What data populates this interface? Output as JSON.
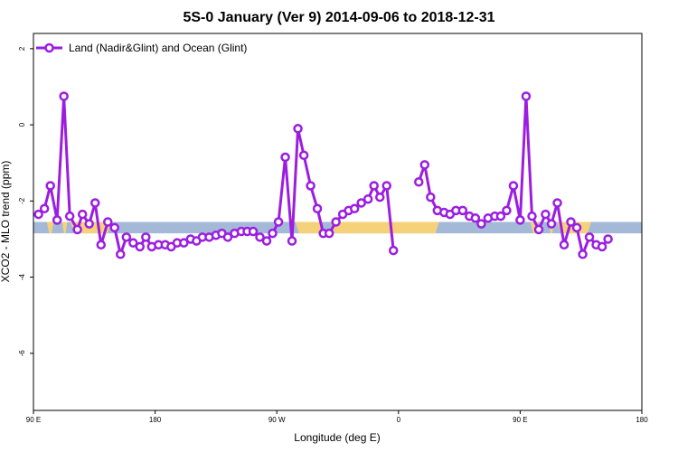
{
  "chart_data": {
    "type": "line",
    "title": "5S-0 January (Ver 9)   2014-09-06 to 2018-12-31",
    "xlabel": "Longitude (deg E)",
    "ylabel": "XCO2 - MLO trend (ppm)",
    "xlim": [
      90,
      450
    ],
    "ylim": [
      -7.5,
      2.4
    ],
    "x_ticks": [
      {
        "value": 90,
        "label": "90 E"
      },
      {
        "value": 162,
        "label": "180"
      },
      {
        "value": 234,
        "label": "90 W"
      },
      {
        "value": 306,
        "label": "0"
      },
      {
        "value": 378,
        "label": "90 E"
      },
      {
        "value": 450,
        "label": "180"
      }
    ],
    "y_ticks": [
      {
        "value": 2,
        "label": "2"
      },
      {
        "value": 0,
        "label": "0"
      },
      {
        "value": -2,
        "label": "-2"
      },
      {
        "value": -4,
        "label": "-4"
      },
      {
        "value": -6,
        "label": "-6"
      }
    ],
    "legend": {
      "position": "top-left"
    },
    "colors": {
      "series": "#9b1ee0",
      "ocean": "#a4b9d8",
      "land": "#f5d27a"
    },
    "band": {
      "y_top": -2.55,
      "y_bottom": -2.85
    },
    "land_segments": [
      {
        "xs": 98,
        "xe": 102
      },
      {
        "xs": 107,
        "xe": 110
      },
      {
        "xs": 112,
        "xe": 136
      },
      {
        "xs": 245,
        "xe": 261
      },
      {
        "xs": 266,
        "xe": 330
      },
      {
        "xs": 384,
        "xe": 389
      },
      {
        "xs": 395,
        "xe": 398
      },
      {
        "xs": 400,
        "xe": 420
      }
    ],
    "series": [
      {
        "name": "Land (Nadir&Glint) and Ocean (Glint)",
        "points": [
          [
            93,
            -2.35
          ],
          [
            96.5,
            -2.2
          ],
          [
            100,
            -1.6
          ],
          [
            104,
            -2.5
          ],
          [
            108,
            0.75
          ],
          [
            111.5,
            -2.4
          ],
          [
            116,
            -2.75
          ],
          [
            119,
            -2.35
          ],
          [
            123,
            -2.6
          ],
          [
            126.5,
            -2.05
          ],
          [
            130,
            -3.15
          ],
          [
            134,
            -2.55
          ],
          [
            138,
            -2.7
          ],
          [
            141.5,
            -3.4
          ],
          [
            145,
            -2.95
          ],
          [
            149,
            -3.1
          ],
          [
            153,
            -3.2
          ],
          [
            156.5,
            -2.95
          ],
          [
            160,
            -3.2
          ],
          [
            164,
            -3.15
          ],
          [
            168,
            -3.15
          ],
          [
            171.5,
            -3.2
          ],
          [
            175,
            -3.1
          ],
          [
            179,
            -3.1
          ],
          [
            183,
            -3.0
          ],
          [
            186.5,
            -3.05
          ],
          [
            190,
            -2.95
          ],
          [
            194,
            -2.95
          ],
          [
            198,
            -2.9
          ],
          [
            201.5,
            -2.85
          ],
          [
            205,
            -2.95
          ],
          [
            209,
            -2.85
          ],
          [
            213,
            -2.8
          ],
          [
            216.5,
            -2.8
          ],
          [
            220,
            -2.8
          ],
          [
            224,
            -2.95
          ],
          [
            228,
            -3.05
          ],
          [
            231.5,
            -2.85
          ],
          [
            235,
            -2.55
          ],
          [
            239,
            -0.85
          ],
          [
            243,
            -3.05
          ],
          [
            246.5,
            -0.1
          ],
          [
            250,
            -0.8
          ],
          [
            254,
            -1.6
          ],
          [
            258,
            -2.2
          ],
          [
            261.5,
            -2.85
          ],
          [
            265,
            -2.85
          ],
          [
            269,
            -2.55
          ],
          [
            273,
            -2.35
          ],
          [
            276.5,
            -2.25
          ],
          [
            280,
            -2.2
          ],
          [
            284,
            -2.05
          ],
          [
            288,
            -1.95
          ],
          [
            291.5,
            -1.6
          ],
          [
            295,
            -1.9
          ],
          [
            299,
            -1.6
          ],
          [
            303,
            -3.3
          ],
          null,
          [
            318,
            -1.5
          ],
          [
            321.5,
            -1.05
          ],
          [
            325,
            -1.9
          ],
          [
            329,
            -2.25
          ],
          [
            333,
            -2.3
          ],
          [
            336.5,
            -2.35
          ],
          [
            340,
            -2.25
          ],
          [
            344,
            -2.25
          ],
          [
            348,
            -2.4
          ],
          [
            351.5,
            -2.45
          ],
          [
            355,
            -2.6
          ],
          [
            359,
            -2.45
          ],
          [
            363,
            -2.4
          ],
          [
            366.5,
            -2.4
          ],
          [
            370,
            -2.25
          ],
          [
            374,
            -1.6
          ],
          [
            378,
            -2.5
          ],
          [
            381.5,
            0.75
          ],
          [
            385,
            -2.4
          ],
          [
            389,
            -2.75
          ],
          [
            393,
            -2.35
          ],
          [
            396.5,
            -2.6
          ],
          [
            400,
            -2.05
          ],
          [
            404,
            -3.15
          ],
          [
            408,
            -2.55
          ],
          [
            411.5,
            -2.7
          ],
          [
            415,
            -3.4
          ],
          [
            419,
            -2.95
          ],
          [
            423,
            -3.15
          ],
          [
            426.5,
            -3.2
          ],
          [
            430,
            -3.0
          ]
        ]
      }
    ]
  }
}
